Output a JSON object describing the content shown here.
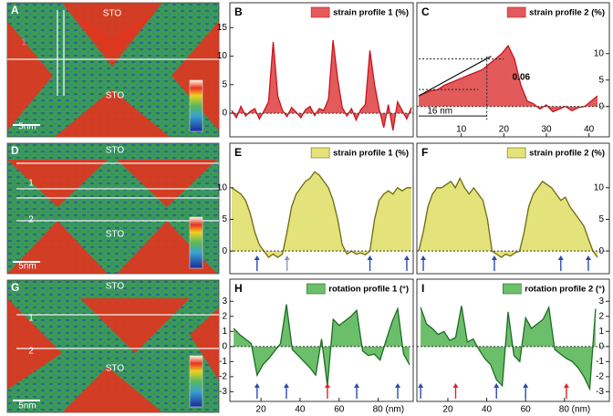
{
  "chart_data": [
    {
      "type": "area",
      "letter": "B",
      "series": [
        {
          "name": "strain profile 1 (%)",
          "color": "#c8141e",
          "fill": "#e35a5a",
          "values": [
            0.5,
            -0.8,
            1.2,
            -0.5,
            0.3,
            0.8,
            -1,
            0.4,
            2,
            12.5,
            3,
            0.5,
            -0.6,
            1,
            0.2,
            -0.8,
            0.6,
            1.2,
            -0.4,
            0.8,
            0.5,
            2.5,
            12.8,
            6,
            1,
            -0.5,
            0.8,
            -1.2,
            0.6,
            1.5,
            11,
            5,
            0.8,
            -2.5,
            1.5,
            -3,
            2,
            0.5,
            -1,
            1
          ]
        }
      ],
      "ylim": [
        -3.5,
        16
      ],
      "yticks": [
        0,
        5,
        10,
        15
      ]
    },
    {
      "type": "area",
      "letter": "C",
      "series": [
        {
          "name": "strain profile 2 (%)",
          "color": "#c8141e",
          "fill": "#e35a5a",
          "values": [
            2,
            2.5,
            3,
            3.2,
            4,
            4.5,
            5,
            5.5,
            6,
            6.5,
            7,
            8,
            9,
            10,
            11.5,
            9,
            4,
            1,
            0.5,
            -0.5,
            0.3,
            -1,
            -0.5,
            0,
            -0.8,
            -0.2,
            0,
            1,
            2
          ]
        }
      ],
      "x": [
        0,
        1.5,
        3,
        4.5,
        6,
        7.5,
        9,
        10.5,
        12,
        13.5,
        15,
        16.5,
        18,
        19.5,
        21,
        22.5,
        24,
        25.5,
        27,
        28.5,
        30,
        31.5,
        33,
        34.5,
        36,
        37.5,
        39,
        40.5,
        42
      ],
      "xlim": [
        0,
        42
      ],
      "xticks": [
        10,
        20,
        30,
        40
      ],
      "ylim": [
        -3.5,
        16
      ],
      "yticks": [
        0,
        5,
        10
      ],
      "annotations": [
        "0.06",
        "16 nm"
      ]
    },
    {
      "type": "area",
      "letter": "E",
      "series": [
        {
          "name": "strain profile 1 (%)",
          "color": "#6e6a10",
          "fill": "#e4e27a",
          "values": [
            10,
            9.5,
            9,
            8,
            6,
            3,
            1,
            0,
            -1,
            -0.5,
            -1,
            -0.5,
            3,
            7,
            9,
            10,
            11,
            11.5,
            12.5,
            12,
            11,
            10,
            8,
            5,
            1,
            -0.5,
            0,
            -0.5,
            -0.3,
            -0.6,
            0,
            5,
            8,
            9,
            9.5,
            9,
            10,
            9.5,
            10,
            10
          ]
        }
      ],
      "ylim": [
        -3,
        14
      ],
      "yticks": [
        0,
        5,
        10
      ],
      "arrows": [
        {
          "x": 5.5,
          "color": "#2a4bb0"
        },
        {
          "x": 12,
          "color": "#8a96b8"
        },
        {
          "x": 30,
          "color": "#2a4bb0"
        },
        {
          "x": 38,
          "color": "#2a4bb0"
        }
      ]
    },
    {
      "type": "area",
      "letter": "F",
      "series": [
        {
          "name": "strain profile 2 (%)",
          "color": "#6e6a10",
          "fill": "#e4e27a",
          "values": [
            0,
            3,
            7,
            9,
            10,
            10,
            10.5,
            11,
            10,
            11.5,
            10,
            9,
            10,
            9,
            8,
            5,
            0,
            -0.5,
            -1,
            -0.5,
            -0.8,
            -0.3,
            0,
            3,
            7,
            9,
            10,
            11,
            10.5,
            10,
            9,
            8,
            8.5,
            7,
            6,
            5,
            4,
            2,
            0,
            -1
          ]
        }
      ],
      "ylim": [
        -3,
        14
      ],
      "yticks": [
        0,
        5,
        10
      ],
      "arrows": [
        {
          "x": 1,
          "color": "#2a4bb0"
        },
        {
          "x": 16.5,
          "color": "#2a4bb0"
        },
        {
          "x": 31,
          "color": "#2a4bb0"
        },
        {
          "x": 37,
          "color": "#2a4bb0"
        }
      ]
    },
    {
      "type": "area",
      "letter": "H",
      "series": [
        {
          "name": "rotation profile 1 (°)",
          "color": "#1d6b24",
          "fill": "#6cbf6a",
          "values": [
            1.2,
            0.8,
            0.5,
            0.2,
            -1.9,
            -1.2,
            -0.8,
            -0.3,
            0.2,
            2.8,
            -0.2,
            -0.6,
            -1,
            -1.4,
            -1.9,
            0.5,
            -2.6,
            1.8,
            1.4,
            1.7,
            2,
            2.4,
            -0.3,
            -0.6,
            -0.5,
            -0.9,
            0.4,
            1.6,
            2.5,
            -0.5,
            -1.2
          ]
        }
      ],
      "x": [
        6,
        9,
        12,
        15,
        18,
        21,
        24,
        27,
        30,
        33,
        36,
        39,
        42,
        45,
        48,
        51,
        54,
        57,
        60,
        63,
        66,
        69,
        72,
        75,
        78,
        81,
        84,
        87,
        90,
        93,
        96
      ],
      "xlim": [
        5,
        97
      ],
      "xticks": [
        20,
        40,
        60,
        {
          "value": 80,
          "label": "80 (nm)"
        }
      ],
      "ylim": [
        -3.4,
        3.5
      ],
      "yticks": [
        -3,
        -2,
        -1,
        0,
        1,
        2,
        3
      ],
      "arrows": [
        {
          "x": 18,
          "color": "#2a4bb0"
        },
        {
          "x": 33,
          "color": "#2a4bb0"
        },
        {
          "x": 54,
          "color": "#d8262a"
        },
        {
          "x": 69,
          "color": "#2a4bb0"
        },
        {
          "x": 90,
          "color": "#2a4bb0"
        }
      ]
    },
    {
      "type": "area",
      "letter": "I",
      "series": [
        {
          "name": "rotation profile 2 (°)",
          "color": "#1d6b24",
          "fill": "#6cbf6a",
          "values": [
            2.6,
            1.5,
            1.2,
            0.8,
            1,
            0.4,
            0.6,
            2.7,
            0.3,
            0.5,
            -0.2,
            -0.8,
            -1.2,
            -2.2,
            -2.6,
            2.3,
            -0.6,
            -1,
            1.9,
            1.2,
            1.5,
            1.8,
            2.6,
            -0.2,
            -0.5,
            -0.8,
            -1,
            -1.4,
            -2,
            -2.8,
            2.5
          ]
        }
      ],
      "x": [
        6,
        9,
        12,
        15,
        18,
        21,
        24,
        27,
        30,
        33,
        36,
        39,
        42,
        45,
        48,
        51,
        54,
        57,
        60,
        63,
        66,
        69,
        72,
        75,
        78,
        81,
        84,
        87,
        90,
        93,
        96
      ],
      "xlim": [
        5,
        97
      ],
      "xticks": [
        20,
        40,
        60,
        {
          "value": 80,
          "label": "80 (nm)"
        }
      ],
      "ylim": [
        -3.4,
        3.5
      ],
      "yticks": [
        -3,
        -2,
        -1,
        0,
        1,
        2,
        3
      ],
      "arrows": [
        {
          "x": 6,
          "color": "#2a4bb0"
        },
        {
          "x": 24,
          "color": "#d8262a"
        },
        {
          "x": 45,
          "color": "#2a4bb0"
        },
        {
          "x": 60,
          "color": "#2a4bb0"
        },
        {
          "x": 81,
          "color": "#d8262a"
        }
      ]
    }
  ],
  "maps": [
    {
      "letter": "A",
      "labels": [
        "STO",
        "1",
        "STO",
        "5nm"
      ]
    },
    {
      "letter": "D",
      "labels": [
        "STO",
        "1",
        "2",
        "STO",
        "5nm"
      ]
    },
    {
      "letter": "G",
      "labels": [
        "STO",
        "1",
        "2",
        "STO",
        "5nm"
      ]
    }
  ]
}
